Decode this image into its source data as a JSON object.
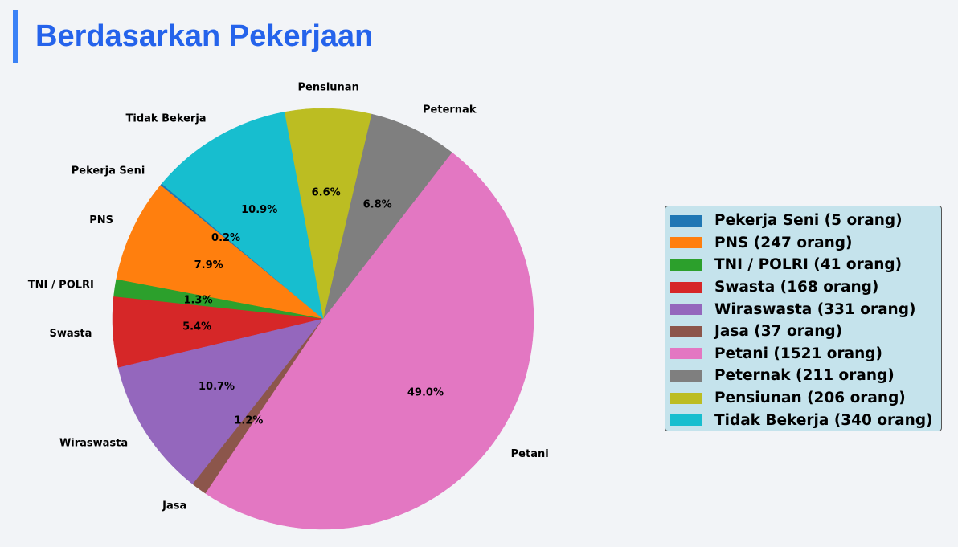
{
  "page": {
    "title": "Berdasarkan Pekerjaan"
  },
  "chart_data": {
    "type": "pie",
    "title": "",
    "legend_position": "right",
    "slices": [
      {
        "label": "Pekerja Seni",
        "value": 5,
        "pct": "0.2%",
        "legend": "Pekerja Seni (5 orang)",
        "color": "#1f77b4"
      },
      {
        "label": "PNS",
        "value": 247,
        "pct": "7.9%",
        "legend": "PNS (247 orang)",
        "color": "#ff7f0e"
      },
      {
        "label": "TNI / POLRI",
        "value": 41,
        "pct": "1.3%",
        "legend": "TNI / POLRI (41 orang)",
        "color": "#2ca02c"
      },
      {
        "label": "Swasta",
        "value": 168,
        "pct": "5.4%",
        "legend": "Swasta (168 orang)",
        "color": "#d62728"
      },
      {
        "label": "Wiraswasta",
        "value": 331,
        "pct": "10.7%",
        "legend": "Wiraswasta (331 orang)",
        "color": "#9467bd"
      },
      {
        "label": "Jasa",
        "value": 37,
        "pct": "1.2%",
        "legend": "Jasa (37 orang)",
        "color": "#8c564b"
      },
      {
        "label": "Petani",
        "value": 1521,
        "pct": "49.0%",
        "legend": "Petani (1521 orang)",
        "color": "#e377c2"
      },
      {
        "label": "Peternak",
        "value": 211,
        "pct": "6.8%",
        "legend": "Peternak (211 orang)",
        "color": "#7f7f7f"
      },
      {
        "label": "Pensiunan",
        "value": 206,
        "pct": "6.6%",
        "legend": "Pensiunan (206 orang)",
        "color": "#bcbd22"
      },
      {
        "label": "Tidak Bekerja",
        "value": 340,
        "pct": "10.9%",
        "legend": "Tidak Bekerja (340 orang)",
        "color": "#17becf"
      }
    ]
  }
}
